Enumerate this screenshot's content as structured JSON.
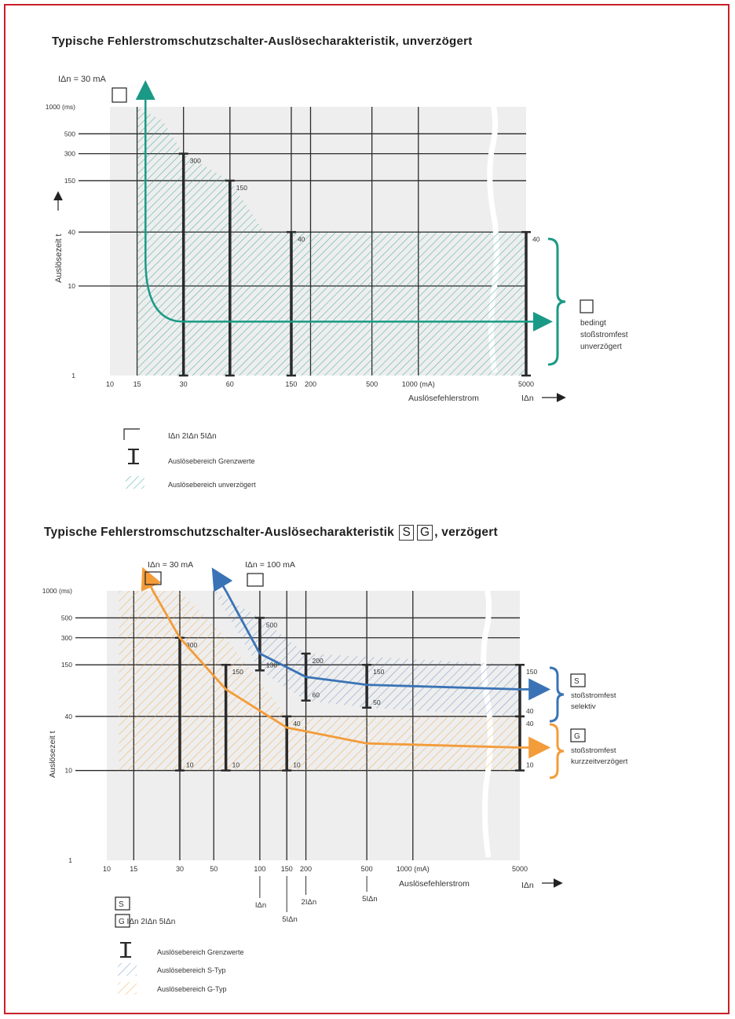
{
  "titles": {
    "chart1": "Typische Fehlerstromschutzschalter-Auslösecharakteristik, unverzögert",
    "chart2_prefix": "Typische Fehlerstromschutzschalter-Auslösecharakteristik",
    "chart2_box_s": "S",
    "chart2_box_g": "G",
    "chart2_suffix": ", verzögert"
  },
  "colors": {
    "green": "#1a9a86",
    "orange": "#f39c3a",
    "blue": "#3a73b5",
    "grid_bg": "#eeeeee",
    "grid_line": "#2a2a2a",
    "bar": "#2a2a2a",
    "frame": "#c8202a"
  },
  "chart_data": [
    {
      "type": "line",
      "x_scale": "log",
      "y_scale": "log",
      "xlim": [
        10,
        5000
      ],
      "ylim": [
        1,
        1000
      ],
      "x_ticks": [
        {
          "v": 10,
          "label": "10"
        },
        {
          "v": 15,
          "label": "15"
        },
        {
          "v": 30,
          "label": "30"
        },
        {
          "v": 60,
          "label": "60"
        },
        {
          "v": 150,
          "label": "150"
        },
        {
          "v": 200,
          "label": "200"
        },
        {
          "v": 500,
          "label": "500"
        },
        {
          "v": 1000,
          "label": "1000 (mA)"
        },
        {
          "v": 5000,
          "label": "5000"
        }
      ],
      "y_ticks": [
        {
          "v": 1,
          "label": "1"
        },
        {
          "v": 10,
          "label": "10"
        },
        {
          "v": 40,
          "label": "40"
        },
        {
          "v": 150,
          "label": "150"
        },
        {
          "v": 300,
          "label": "300"
        },
        {
          "v": 500,
          "label": "500"
        },
        {
          "v": 1000,
          "label": "1000 (ms)"
        }
      ],
      "xlabel": "Auslösefehlerstrom",
      "xlabel_sub": "IΔn",
      "ylabel": "Auslösezeit t",
      "top_label": "IΔn = 30 mA",
      "right_label_lines": [
        "bedingt",
        "stoßstromfest",
        "unverzögert"
      ],
      "curve": {
        "x": [
          17,
          17,
          19,
          30,
          5000
        ],
        "y": [
          1000,
          20,
          10,
          4,
          4
        ]
      },
      "region": {
        "x": [
          15,
          22,
          30,
          60,
          100,
          5000
        ],
        "y_upper": [
          1000,
          700,
          300,
          150,
          40,
          40
        ]
      },
      "bars": [
        {
          "x": 30,
          "low": 1,
          "high": 300,
          "label": "300"
        },
        {
          "x": 60,
          "low": 1,
          "high": 150,
          "label": "150"
        },
        {
          "x": 150,
          "low": 1,
          "high": 40,
          "label": "40"
        },
        {
          "x": 5000,
          "low": 1,
          "high": 40,
          "label": "40"
        }
      ],
      "legend": [
        {
          "symbol": "box",
          "text": "IΔn   2IΔn   5IΔn"
        },
        {
          "symbol": "bar",
          "text": "Auslösebereich Grenzwerte"
        },
        {
          "symbol": "hatch-green",
          "text": "Auslösebereich unverzögert"
        }
      ]
    },
    {
      "type": "line",
      "x_scale": "log",
      "y_scale": "log",
      "xlim": [
        10,
        5000
      ],
      "ylim": [
        1,
        1000
      ],
      "x_ticks": [
        {
          "v": 10,
          "label": "10"
        },
        {
          "v": 15,
          "label": "15"
        },
        {
          "v": 30,
          "label": "30"
        },
        {
          "v": 50,
          "label": "50"
        },
        {
          "v": 100,
          "label": "100"
        },
        {
          "v": 150,
          "label": "150"
        },
        {
          "v": 200,
          "label": "200"
        },
        {
          "v": 500,
          "label": "500"
        },
        {
          "v": 1000,
          "label": "1000 (mA)"
        },
        {
          "v": 5000,
          "label": "5000"
        }
      ],
      "y_ticks": [
        {
          "v": 1,
          "label": "1"
        },
        {
          "v": 10,
          "label": "10"
        },
        {
          "v": 40,
          "label": "40"
        },
        {
          "v": 150,
          "label": "150"
        },
        {
          "v": 300,
          "label": "300"
        },
        {
          "v": 500,
          "label": "500"
        },
        {
          "v": 1000,
          "label": "1000 (ms)"
        }
      ],
      "xlabel": "Auslösefehlerstrom",
      "xlabel_sub": "IΔn",
      "ylabel": "Auslösezeit t",
      "top_label_g": "IΔn = 30 mA",
      "top_label_s": "IΔn = 100 mA",
      "bottom_markers": [
        {
          "x": 100,
          "label": "IΔn"
        },
        {
          "x": 150,
          "label": "5IΔn"
        },
        {
          "x": 200,
          "label": "2IΔn"
        },
        {
          "x": 500,
          "label": "5IΔn"
        }
      ],
      "series": [
        {
          "name": "S",
          "x": [
            60,
            100,
            200,
            500,
            5000
          ],
          "y": [
            1000,
            200,
            110,
            90,
            80
          ]
        },
        {
          "name": "G",
          "x": [
            20,
            30,
            60,
            150,
            500,
            5000
          ],
          "y": [
            1000,
            300,
            80,
            30,
            20,
            18
          ]
        }
      ],
      "bars": [
        {
          "x": 30,
          "low": 10,
          "high": 300,
          "top_label": "300",
          "bottom_label": "10"
        },
        {
          "x": 60,
          "low": 10,
          "high": 150,
          "top_label": "150",
          "bottom_label": "10"
        },
        {
          "x": 100,
          "low": 130,
          "high": 500,
          "top_label": "500",
          "bottom_label": "130"
        },
        {
          "x": 150,
          "low": 10,
          "high": 40,
          "top_label": "40",
          "bottom_label": "10"
        },
        {
          "x": 200,
          "low": 60,
          "high": 200,
          "top_label": "200",
          "bottom_label": "60"
        },
        {
          "x": 500,
          "low": 50,
          "high": 150,
          "top_label": "150",
          "bottom_label": "50"
        },
        {
          "x": 5000,
          "low": 40,
          "high": 150,
          "top_label": "150",
          "bottom_label": "40"
        },
        {
          "x": 5000,
          "low": 10,
          "high": 40,
          "top_label": "40",
          "bottom_label": "10"
        }
      ],
      "right_labels": [
        {
          "box": "S",
          "lines": [
            "stoßstromfest",
            "selektiv"
          ]
        },
        {
          "box": "G",
          "lines": [
            "stoßstromfest",
            "kurzzeitverzögert"
          ]
        }
      ],
      "legend": [
        {
          "symbol": "box",
          "text": "S"
        },
        {
          "symbol": "box",
          "text": "G   IΔn   2IΔn   5IΔn"
        },
        {
          "symbol": "bar",
          "text": "Auslösebereich Grenzwerte"
        },
        {
          "symbol": "hatch-blue",
          "text": "Auslösebereich S-Typ"
        },
        {
          "symbol": "hatch-orange",
          "text": "Auslösebereich G-Typ"
        }
      ]
    }
  ]
}
